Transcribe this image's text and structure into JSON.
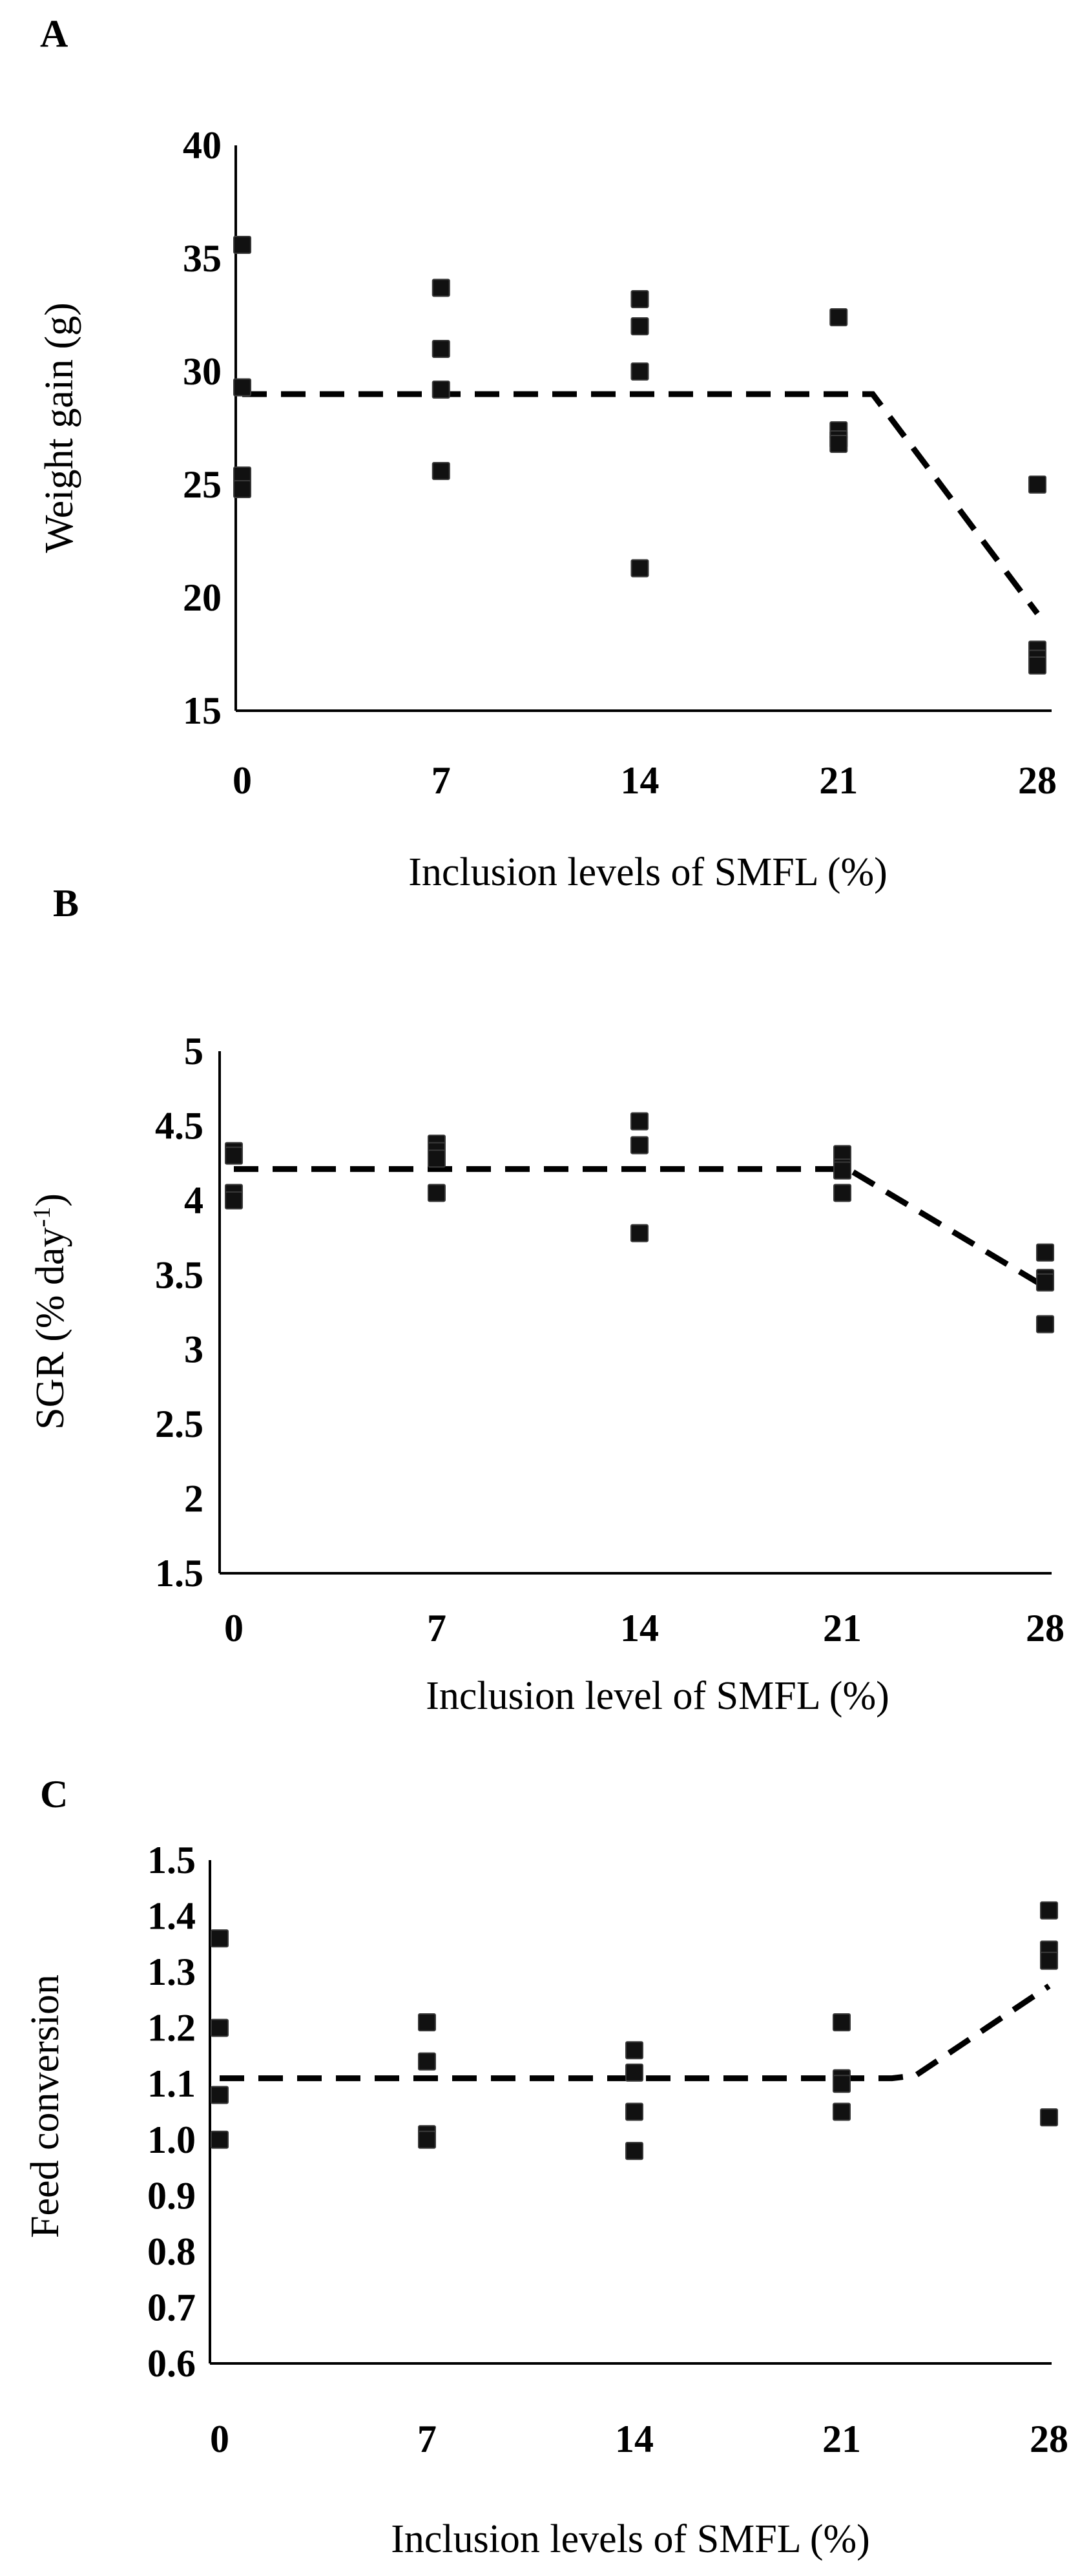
{
  "chart_data": [
    {
      "panel": "A",
      "type": "scatter",
      "title": "",
      "xlabel": "Inclusion levels of SMFL (%)",
      "ylabel": "Weight gain (g)",
      "ylabel_super": "",
      "ylabel_tail": "",
      "categories": [
        "0",
        "7",
        "14",
        "21",
        "28"
      ],
      "x_values": [
        0,
        7,
        14,
        21,
        28
      ],
      "ylim": [
        15,
        40
      ],
      "yticks": [
        "15",
        "20",
        "25",
        "30",
        "35",
        "40"
      ],
      "tick_values": [
        15,
        20,
        25,
        30,
        35,
        40
      ],
      "points": [
        {
          "x": 0,
          "y": 35.6
        },
        {
          "x": 0,
          "y": 29.3
        },
        {
          "x": 0,
          "y": 25.4
        },
        {
          "x": 0,
          "y": 24.8
        },
        {
          "x": 7,
          "y": 33.7
        },
        {
          "x": 7,
          "y": 31.0
        },
        {
          "x": 7,
          "y": 29.2
        },
        {
          "x": 7,
          "y": 25.6
        },
        {
          "x": 14,
          "y": 33.2
        },
        {
          "x": 14,
          "y": 32.0
        },
        {
          "x": 14,
          "y": 30.0
        },
        {
          "x": 14,
          "y": 21.3
        },
        {
          "x": 21,
          "y": 32.4
        },
        {
          "x": 21,
          "y": 27.4
        },
        {
          "x": 21,
          "y": 27.0
        },
        {
          "x": 21,
          "y": 26.8
        },
        {
          "x": 28,
          "y": 25.0
        },
        {
          "x": 28,
          "y": 17.7
        },
        {
          "x": 28,
          "y": 17.3
        },
        {
          "x": 28,
          "y": 17.0
        }
      ],
      "trend": [
        {
          "x": 0,
          "y": 29.0
        },
        {
          "x": 22.2,
          "y": 29.0
        },
        {
          "x": 28,
          "y": 19.3
        }
      ]
    },
    {
      "panel": "B",
      "type": "scatter",
      "title": "",
      "xlabel": "Inclusion level of SMFL (%)",
      "ylabel": "SGR  (% day",
      "ylabel_super": "-1",
      "ylabel_tail": ")",
      "categories": [
        "0",
        "7",
        "14",
        "21",
        "28"
      ],
      "x_values": [
        0,
        7,
        14,
        21,
        28
      ],
      "ylim": [
        1.5,
        5
      ],
      "yticks": [
        "1.5",
        "2",
        "2.5",
        "3",
        "3.5",
        "4",
        "4.5",
        "5"
      ],
      "tick_values": [
        1.5,
        2,
        2.5,
        3,
        3.5,
        4,
        4.5,
        5
      ],
      "points": [
        {
          "x": 0,
          "y": 4.33
        },
        {
          "x": 0,
          "y": 4.3
        },
        {
          "x": 0,
          "y": 4.05
        },
        {
          "x": 0,
          "y": 4.0
        },
        {
          "x": 7,
          "y": 4.38
        },
        {
          "x": 7,
          "y": 4.33
        },
        {
          "x": 7,
          "y": 4.28
        },
        {
          "x": 7,
          "y": 4.05
        },
        {
          "x": 14,
          "y": 4.53
        },
        {
          "x": 14,
          "y": 4.37
        },
        {
          "x": 14,
          "y": 3.78
        },
        {
          "x": 21,
          "y": 4.31
        },
        {
          "x": 21,
          "y": 4.22
        },
        {
          "x": 21,
          "y": 4.2
        },
        {
          "x": 21,
          "y": 4.05
        },
        {
          "x": 28,
          "y": 3.65
        },
        {
          "x": 28,
          "y": 3.48
        },
        {
          "x": 28,
          "y": 3.45
        },
        {
          "x": 28,
          "y": 3.17
        }
      ],
      "trend": [
        {
          "x": 0,
          "y": 4.21
        },
        {
          "x": 21.2,
          "y": 4.21
        },
        {
          "x": 28,
          "y": 3.42
        }
      ]
    },
    {
      "panel": "C",
      "type": "scatter",
      "title": "",
      "xlabel": "Inclusion levels of SMFL (%)",
      "ylabel": "Feed conversion",
      "ylabel_super": "",
      "ylabel_tail": "",
      "categories": [
        "0",
        "7",
        "14",
        "21",
        "28"
      ],
      "x_values": [
        0,
        7,
        14,
        21,
        28
      ],
      "ylim": [
        0.6,
        1.5
      ],
      "yticks": [
        "0.6",
        "0.7",
        "0.8",
        "0.9",
        "1.0",
        "1.1",
        "1.2",
        "1.3",
        "1.4",
        "1.5"
      ],
      "tick_values": [
        0.6,
        0.7,
        0.8,
        0.9,
        1.0,
        1.1,
        1.2,
        1.3,
        1.4,
        1.5
      ],
      "points": [
        {
          "x": 0,
          "y": 1.36
        },
        {
          "x": 0,
          "y": 1.2
        },
        {
          "x": 0,
          "y": 1.08
        },
        {
          "x": 0,
          "y": 1.0
        },
        {
          "x": 7,
          "y": 1.21
        },
        {
          "x": 7,
          "y": 1.14
        },
        {
          "x": 7,
          "y": 1.01
        },
        {
          "x": 7,
          "y": 1.0
        },
        {
          "x": 14,
          "y": 1.16
        },
        {
          "x": 14,
          "y": 1.12
        },
        {
          "x": 14,
          "y": 1.05
        },
        {
          "x": 14,
          "y": 0.98
        },
        {
          "x": 21,
          "y": 1.21
        },
        {
          "x": 21,
          "y": 1.11
        },
        {
          "x": 21,
          "y": 1.1
        },
        {
          "x": 21,
          "y": 1.05
        },
        {
          "x": 28,
          "y": 1.41
        },
        {
          "x": 28,
          "y": 1.34
        },
        {
          "x": 28,
          "y": 1.32
        },
        {
          "x": 28,
          "y": 1.04
        }
      ],
      "trend": [
        {
          "x": 0,
          "y": 1.11
        },
        {
          "x": 22.7,
          "y": 1.11
        },
        {
          "x": 23.5,
          "y": 1.115
        },
        {
          "x": 28,
          "y": 1.275
        }
      ]
    }
  ]
}
